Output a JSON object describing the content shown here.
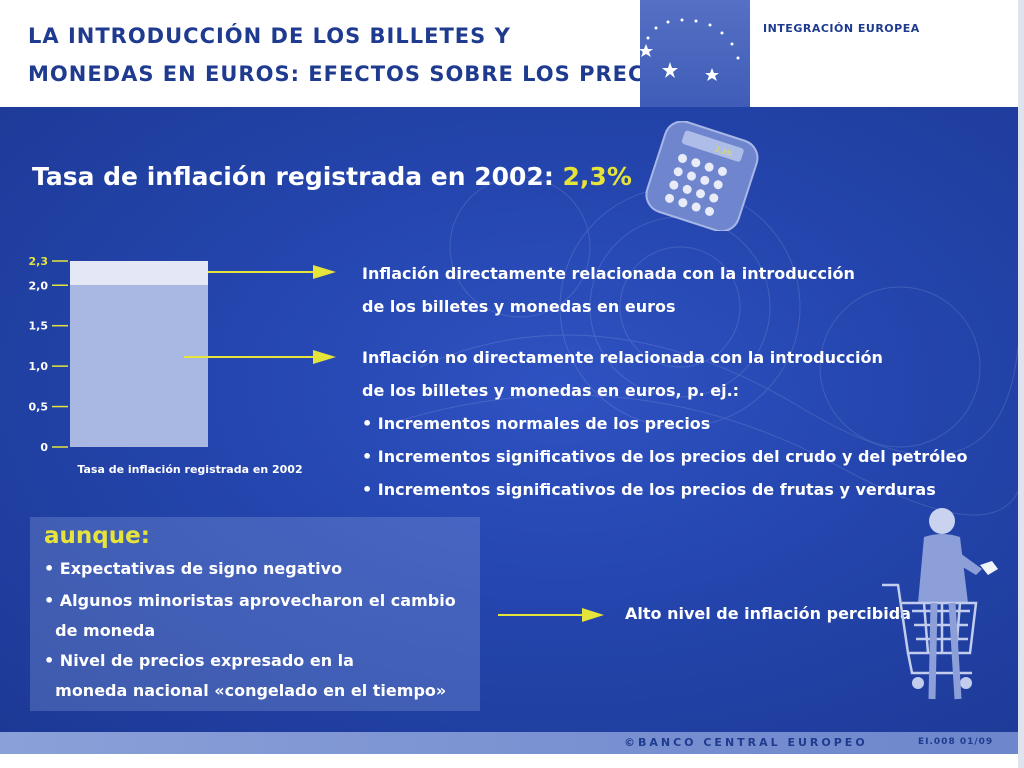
{
  "header": {
    "title_line1": "LA INTRODUCCIÓN DE LOS BILLETES Y",
    "title_line2": "MONEDAS EN EUROS: EFECTOS SOBRE LOS PRECIOS",
    "section": "INTEGRACIÓN EUROPEA"
  },
  "main": {
    "heading_prefix": "Tasa de inflación registrada en 2002: ",
    "heading_value": "2,3%",
    "calculator_display": "2,3%"
  },
  "direct_block": {
    "line1": "Inflación directamente relacionada con la introducción",
    "line2": "de los billetes y monedas en euros"
  },
  "indirect_block": {
    "line1": "Inflación no directamente relacionada con la introducción",
    "line2": "de los billetes y monedas en euros, p. ej.:",
    "bullets": [
      "• Incrementos normales de los precios",
      "• Incrementos significativos de los precios del crudo y del petróleo",
      "• Incrementos significativos de los precios de frutas y verduras"
    ]
  },
  "aunque": {
    "title": "aunque:",
    "items": [
      "• Expectativas de signo negativo",
      "• Algunos minoristas aprovecharon el cambio",
      "  de moneda",
      "• Nivel de precios expresado en la",
      "  moneda nacional «congelado en el tiempo»"
    ]
  },
  "perceived": "Alto nivel de inflación percibida",
  "footer": {
    "text": "©BANCO CENTRAL EUROPEO",
    "code": "EI.008 01/09"
  },
  "colors": {
    "accent_yellow": "#e6e43b",
    "title_blue": "#1f3b8f",
    "panel_blue": "#2445ad"
  },
  "chart_data": {
    "type": "bar",
    "categories": [
      "Tasa de inflación registrada en 2002"
    ],
    "xlabel": "Tasa de inflación registrada en 2002",
    "ylim": [
      0,
      2.3
    ],
    "ticks": [
      {
        "value": 0,
        "label": "0"
      },
      {
        "value": 0.5,
        "label": "0,5"
      },
      {
        "value": 1.0,
        "label": "1,0"
      },
      {
        "value": 1.5,
        "label": "1,5"
      },
      {
        "value": 2.0,
        "label": "2,0"
      },
      {
        "value": 2.3,
        "label": "2,3"
      }
    ],
    "segments": [
      {
        "from": 0,
        "to": 2.0,
        "color": "#a9b8e3"
      },
      {
        "from": 2.0,
        "to": 2.3,
        "color": "#e4e8f6"
      }
    ],
    "total": 2.3
  }
}
